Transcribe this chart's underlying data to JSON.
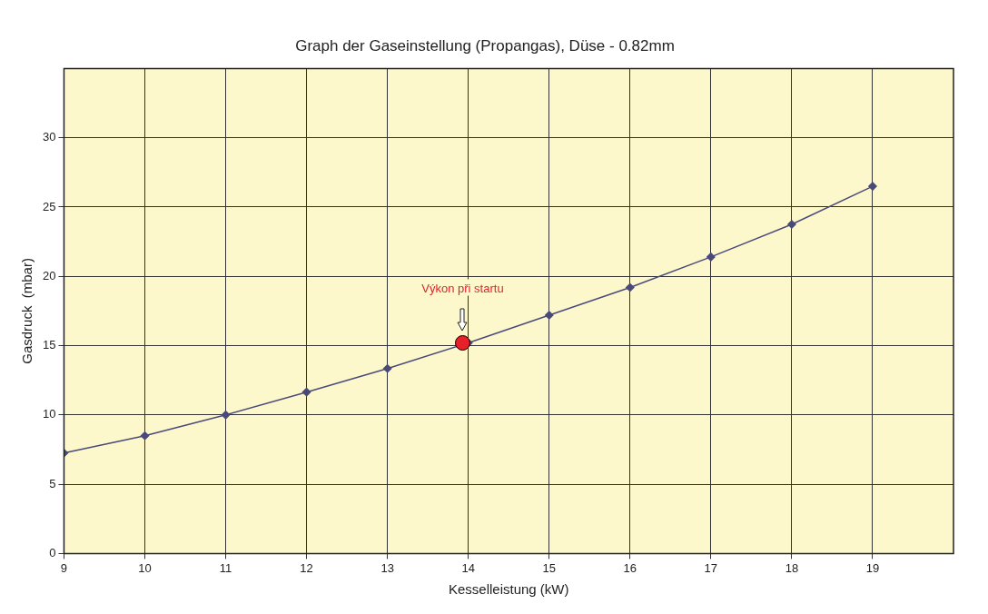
{
  "chart_data": {
    "type": "line",
    "title": "Graph der Gaseinstellung (Propangas), Düse - 0.82mm",
    "xlabel": "Kesselleistung (kW)",
    "ylabel": "Gasdruck  (mbar)",
    "x": [
      9,
      10,
      11,
      12,
      13,
      14,
      15,
      16,
      17,
      18,
      19
    ],
    "series": [
      {
        "color": "#4a4a7a",
        "values": [
          7.25,
          8.5,
          10,
          11.65,
          13.35,
          15.2,
          17.2,
          19.2,
          21.4,
          23.75,
          26.5
        ]
      },
      {
        "type": "scatter",
        "color": "#e8202a",
        "marker": "circle",
        "x": [
          13.93
        ],
        "values": [
          15.2
        ]
      }
    ],
    "annotations": [
      "Výkon při startu"
    ],
    "xlim": [
      9,
      20
    ],
    "xticks": [
      9,
      10,
      11,
      12,
      13,
      14,
      15,
      16,
      17,
      18,
      19
    ],
    "ylim": [
      0,
      35
    ],
    "yticks": [
      0,
      5,
      10,
      15,
      20,
      25,
      30
    ],
    "grid": true,
    "marker": "diamond",
    "line_style": "solid",
    "legend": false
  }
}
